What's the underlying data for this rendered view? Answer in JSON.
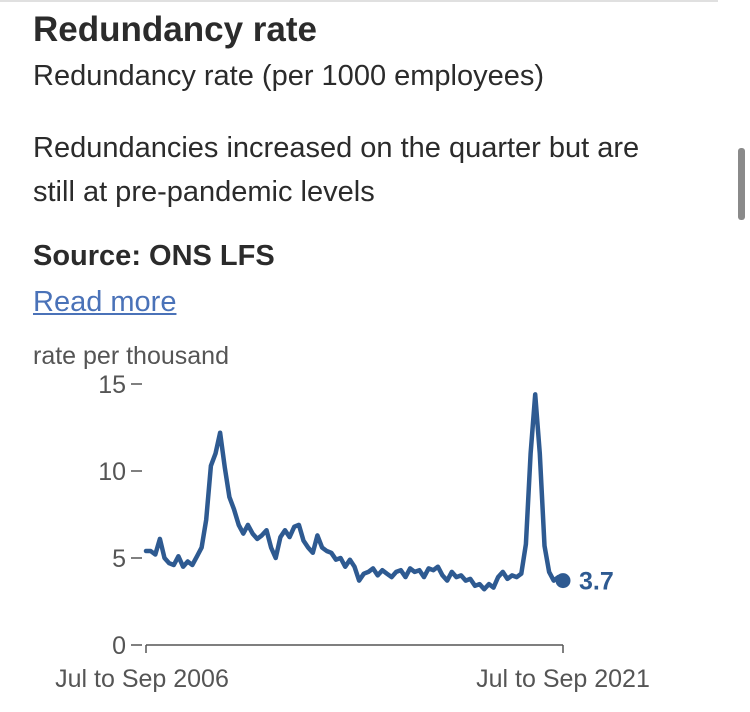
{
  "title": "Redundancy rate",
  "subtitle": "Redundancy rate (per 1000 employees)",
  "description": "Redundancies increased on the quarter but are still at pre-pandemic levels",
  "source": "Source: ONS LFS",
  "read_more": "Read more",
  "colors": {
    "line": "#2e5a91",
    "text": "#2b2b2b",
    "axis": "#555555",
    "link": "#4a72b8"
  },
  "chart_data": {
    "type": "line",
    "title": "",
    "ylabel": "rate per thousand",
    "xlabel": "",
    "ylim": [
      0,
      15
    ],
    "yticks": [
      0,
      5,
      10,
      15
    ],
    "ytick_labels": [
      "0",
      "5",
      "10",
      "15"
    ],
    "x_start_label": "Jul to Sep 2006",
    "x_end_label": "Jul to Sep 2021",
    "last_value_label": "3.7",
    "series": [
      {
        "name": "Redundancy rate",
        "values": [
          5.4,
          5.4,
          5.2,
          6.1,
          5.0,
          4.7,
          4.6,
          5.1,
          4.5,
          4.8,
          4.6,
          5.1,
          5.6,
          7.2,
          10.3,
          11.0,
          12.2,
          10.2,
          8.5,
          7.8,
          6.9,
          6.4,
          6.9,
          6.4,
          6.1,
          6.3,
          6.6,
          5.6,
          5.0,
          6.2,
          6.6,
          6.2,
          6.8,
          6.9,
          6.0,
          5.6,
          5.3,
          6.3,
          5.6,
          5.4,
          5.3,
          4.9,
          5.0,
          4.5,
          4.9,
          4.5,
          3.7,
          4.1,
          4.2,
          4.4,
          4.0,
          4.3,
          4.1,
          3.9,
          4.2,
          4.3,
          3.9,
          4.4,
          4.2,
          4.3,
          3.9,
          4.4,
          4.3,
          4.5,
          4.0,
          3.7,
          4.2,
          3.9,
          4.0,
          3.7,
          3.8,
          3.4,
          3.5,
          3.2,
          3.5,
          3.3,
          3.9,
          4.2,
          3.8,
          4.0,
          3.9,
          4.1,
          5.8,
          11.0,
          14.4,
          11.0,
          5.7,
          4.2,
          3.7,
          3.9,
          3.7
        ]
      }
    ]
  }
}
